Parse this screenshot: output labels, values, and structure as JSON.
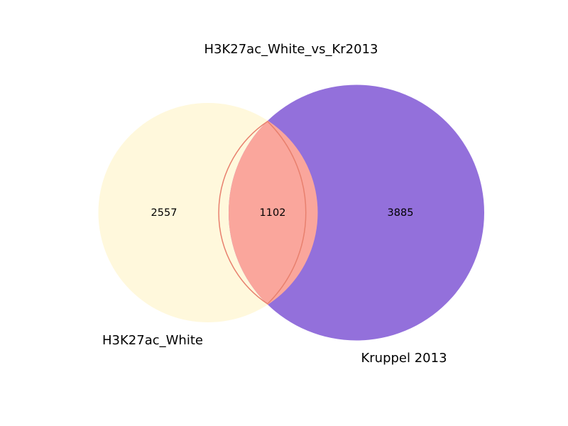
{
  "title": "H3K27ac_White_vs_Kr2013",
  "sets": [
    {
      "name": "H3K27ac_White",
      "only_count": "2557",
      "color": "#fff8dc"
    },
    {
      "name": "Kruppel 2013",
      "only_count": "3885",
      "color": "#9370db"
    }
  ],
  "intersection": {
    "count": "1102",
    "color": "#faa69c",
    "edge_color": "#e8806e"
  }
}
